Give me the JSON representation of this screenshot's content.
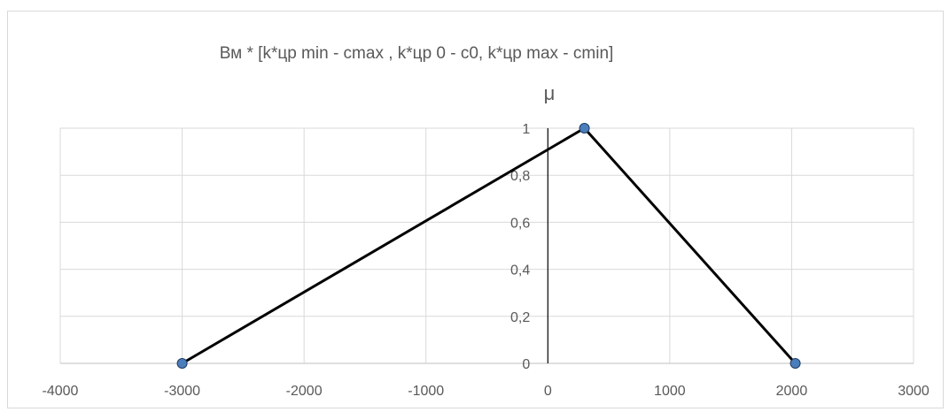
{
  "chart_data": {
    "type": "scatter",
    "title": "Вм * [k*цр min - cmax , k*цр 0 - c0, k*цр max - cmin]",
    "xlabel": "",
    "ylabel": "μ",
    "xlim": [
      -4000,
      3000
    ],
    "ylim": [
      0,
      1
    ],
    "x_ticks": [
      -4000,
      -3000,
      -2000,
      -1000,
      0,
      1000,
      2000,
      3000
    ],
    "y_ticks": [
      "0",
      "0,2",
      "0,4",
      "0,6",
      "0,8",
      "1"
    ],
    "y_tick_values": [
      0,
      0.2,
      0.4,
      0.6,
      0.8,
      1
    ],
    "grid": true,
    "legend": "none",
    "series": [
      {
        "points": [
          {
            "x": -3000,
            "y": 0
          },
          {
            "x": 300,
            "y": 1
          },
          {
            "x": 2030,
            "y": 0
          }
        ],
        "line_color": "#000000",
        "marker_color": "#4a7ebb"
      }
    ]
  }
}
